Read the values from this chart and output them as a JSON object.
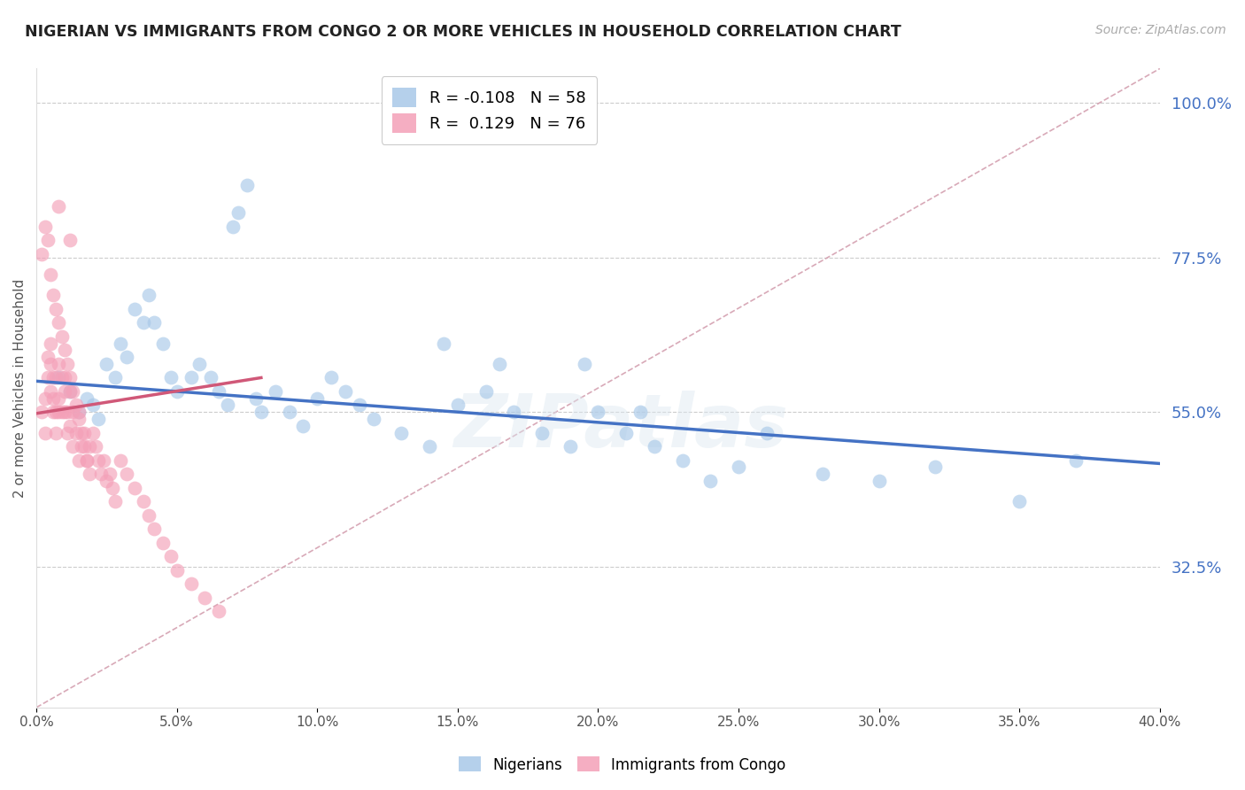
{
  "title": "NIGERIAN VS IMMIGRANTS FROM CONGO 2 OR MORE VEHICLES IN HOUSEHOLD CORRELATION CHART",
  "source": "Source: ZipAtlas.com",
  "ylabel": "2 or more Vehicles in Household",
  "yticks": [
    0.325,
    0.55,
    0.775,
    1.0
  ],
  "ytick_labels": [
    "32.5%",
    "55.0%",
    "77.5%",
    "100.0%"
  ],
  "xmin": 0.0,
  "xmax": 0.4,
  "ymin": 0.12,
  "ymax": 1.05,
  "nigerian_R": -0.108,
  "nigerian_N": 58,
  "congo_R": 0.129,
  "congo_N": 76,
  "nigerian_color": "#a8c8e8",
  "congo_color": "#f4a0b8",
  "nigerian_line_color": "#4472c4",
  "congo_line_color": "#d05878",
  "diag_line_color": "#d4a0b0",
  "watermark": "ZIPatlas",
  "nigerian_x": [
    0.008,
    0.012,
    0.015,
    0.018,
    0.02,
    0.022,
    0.025,
    0.028,
    0.03,
    0.032,
    0.035,
    0.038,
    0.04,
    0.042,
    0.045,
    0.048,
    0.05,
    0.055,
    0.058,
    0.062,
    0.065,
    0.068,
    0.07,
    0.072,
    0.075,
    0.078,
    0.08,
    0.085,
    0.09,
    0.095,
    0.1,
    0.105,
    0.11,
    0.115,
    0.12,
    0.13,
    0.14,
    0.15,
    0.16,
    0.17,
    0.18,
    0.19,
    0.2,
    0.21,
    0.22,
    0.23,
    0.24,
    0.25,
    0.26,
    0.28,
    0.3,
    0.32,
    0.35,
    0.37,
    0.165,
    0.145,
    0.195,
    0.215
  ],
  "nigerian_y": [
    0.6,
    0.58,
    0.55,
    0.57,
    0.56,
    0.54,
    0.62,
    0.6,
    0.65,
    0.63,
    0.7,
    0.68,
    0.72,
    0.68,
    0.65,
    0.6,
    0.58,
    0.6,
    0.62,
    0.6,
    0.58,
    0.56,
    0.82,
    0.84,
    0.88,
    0.57,
    0.55,
    0.58,
    0.55,
    0.53,
    0.57,
    0.6,
    0.58,
    0.56,
    0.54,
    0.52,
    0.5,
    0.56,
    0.58,
    0.55,
    0.52,
    0.5,
    0.55,
    0.52,
    0.5,
    0.48,
    0.45,
    0.47,
    0.52,
    0.46,
    0.45,
    0.47,
    0.42,
    0.48,
    0.62,
    0.65,
    0.62,
    0.55
  ],
  "congo_x": [
    0.002,
    0.003,
    0.003,
    0.004,
    0.004,
    0.005,
    0.005,
    0.005,
    0.006,
    0.006,
    0.006,
    0.007,
    0.007,
    0.007,
    0.008,
    0.008,
    0.008,
    0.009,
    0.009,
    0.01,
    0.01,
    0.01,
    0.011,
    0.011,
    0.012,
    0.012,
    0.013,
    0.013,
    0.014,
    0.015,
    0.015,
    0.016,
    0.017,
    0.018,
    0.019,
    0.02,
    0.021,
    0.022,
    0.023,
    0.024,
    0.025,
    0.026,
    0.027,
    0.028,
    0.03,
    0.032,
    0.035,
    0.038,
    0.04,
    0.042,
    0.045,
    0.048,
    0.05,
    0.055,
    0.06,
    0.065,
    0.002,
    0.003,
    0.004,
    0.005,
    0.006,
    0.007,
    0.008,
    0.009,
    0.01,
    0.011,
    0.012,
    0.013,
    0.014,
    0.015,
    0.016,
    0.017,
    0.018,
    0.019,
    0.008,
    0.012
  ],
  "congo_y": [
    0.55,
    0.52,
    0.57,
    0.6,
    0.63,
    0.65,
    0.62,
    0.58,
    0.55,
    0.6,
    0.57,
    0.52,
    0.55,
    0.6,
    0.55,
    0.57,
    0.62,
    0.55,
    0.6,
    0.58,
    0.55,
    0.6,
    0.55,
    0.52,
    0.58,
    0.53,
    0.55,
    0.5,
    0.52,
    0.55,
    0.48,
    0.5,
    0.52,
    0.48,
    0.5,
    0.52,
    0.5,
    0.48,
    0.46,
    0.48,
    0.45,
    0.46,
    0.44,
    0.42,
    0.48,
    0.46,
    0.44,
    0.42,
    0.4,
    0.38,
    0.36,
    0.34,
    0.32,
    0.3,
    0.28,
    0.26,
    0.78,
    0.82,
    0.8,
    0.75,
    0.72,
    0.7,
    0.68,
    0.66,
    0.64,
    0.62,
    0.6,
    0.58,
    0.56,
    0.54,
    0.52,
    0.5,
    0.48,
    0.46,
    0.85,
    0.8
  ],
  "nigerian_trend_x": [
    0.0,
    0.4
  ],
  "nigerian_trend_y": [
    0.595,
    0.475
  ],
  "congo_trend_x": [
    0.0,
    0.08
  ],
  "congo_trend_y": [
    0.548,
    0.6
  ]
}
